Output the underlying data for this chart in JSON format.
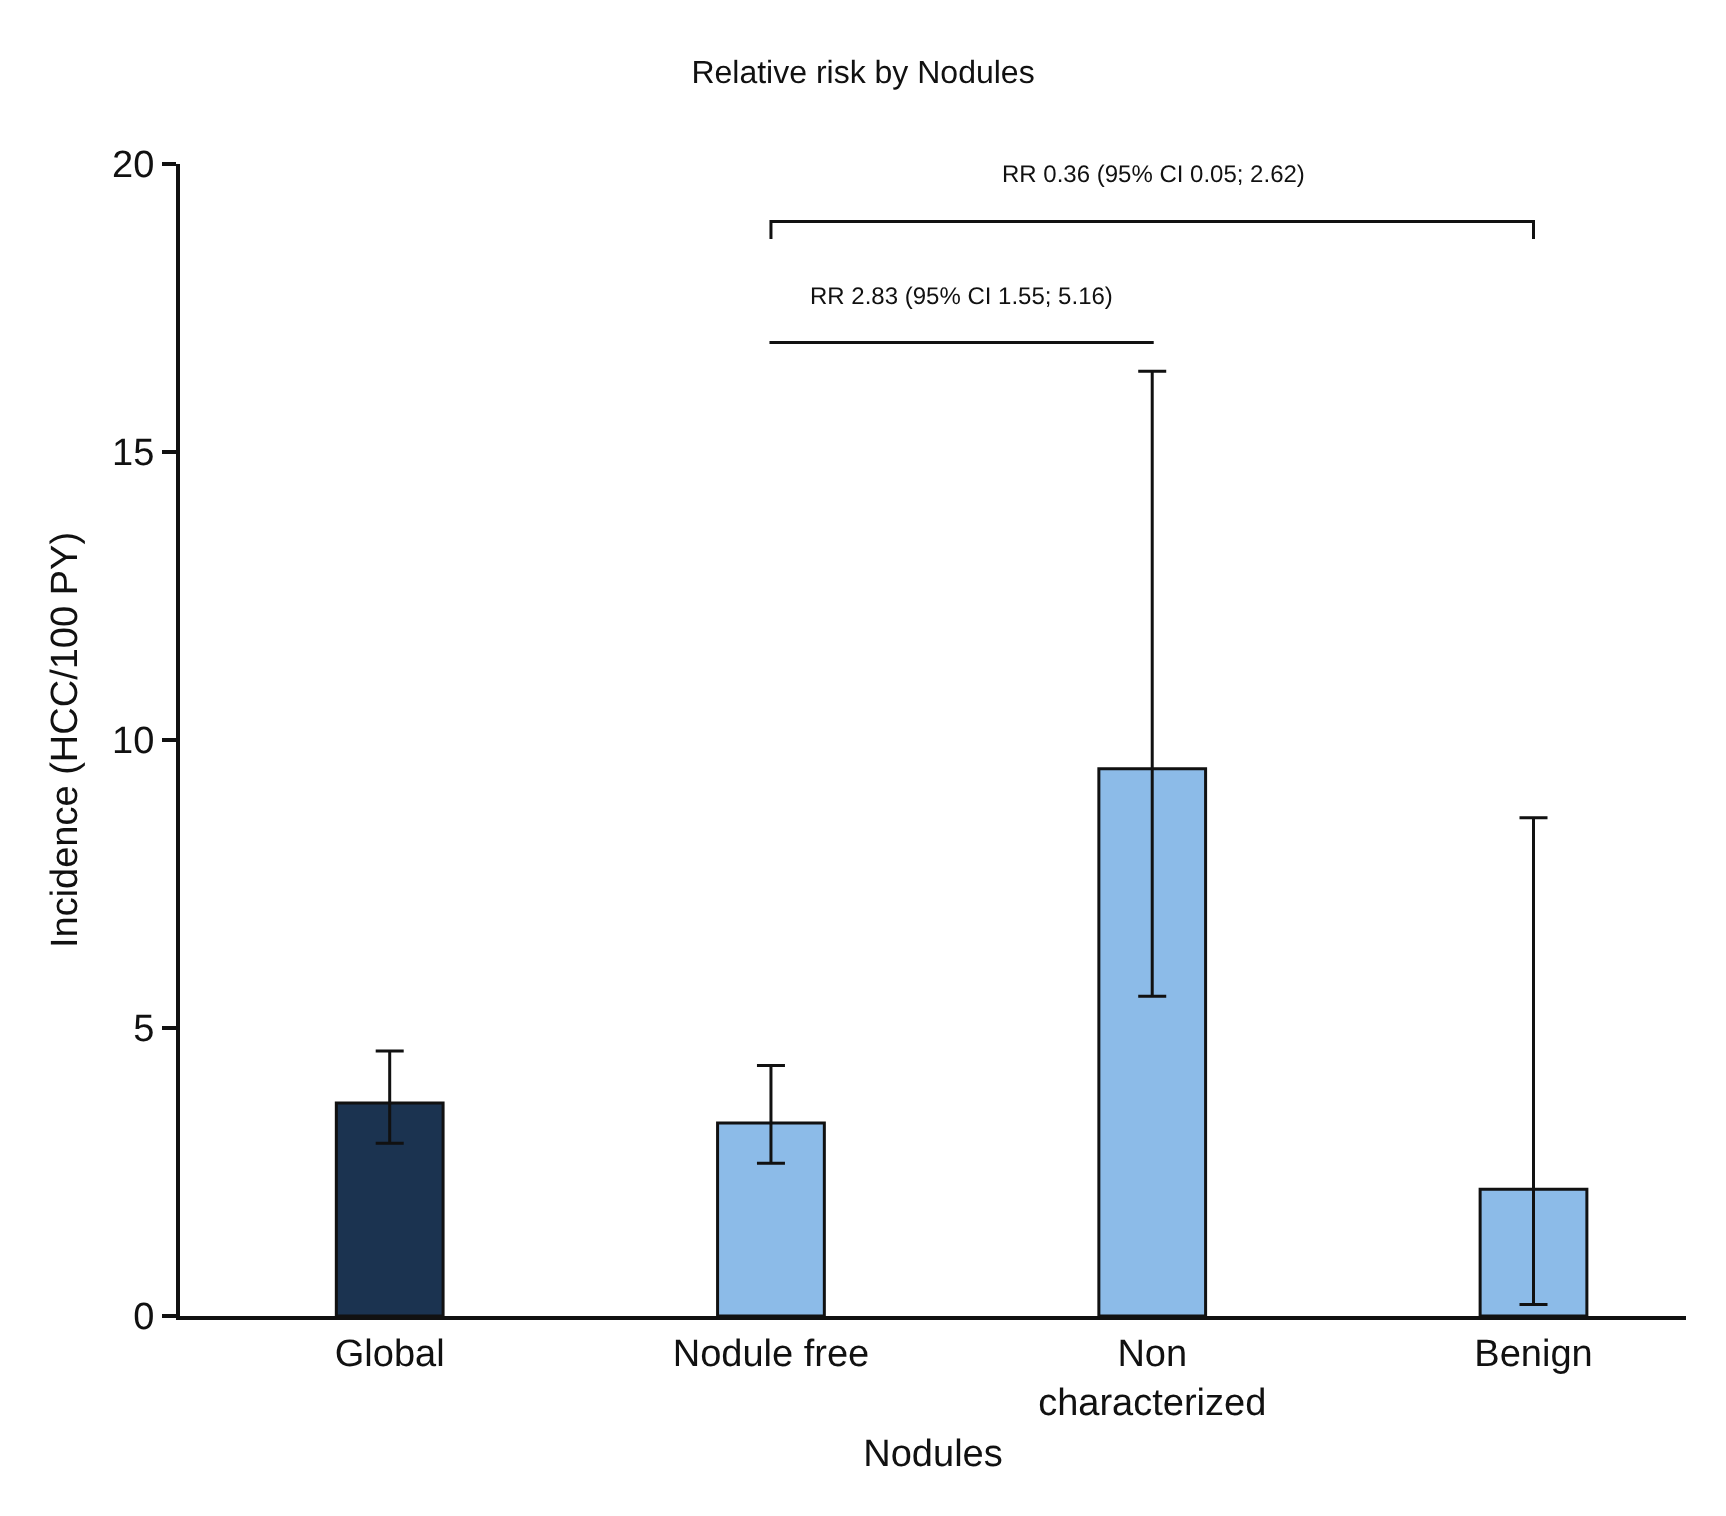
{
  "chart_data": {
    "type": "bar",
    "title": "Relative risk by Nodules",
    "xlabel": "Nodules",
    "ylabel": "Incidence (HCC/100 PY)",
    "categories": [
      "Global",
      "Nodule free",
      "Non\ncharacterized",
      "Benign"
    ],
    "values": [
      3.7,
      3.35,
      9.5,
      2.2
    ],
    "colors": [
      "#1b3350",
      "#8cbbe8",
      "#8cbbe8",
      "#8cbbe8"
    ],
    "errors": [
      [
        3.0,
        4.6
      ],
      [
        2.65,
        4.35
      ],
      [
        5.55,
        16.4
      ],
      [
        0.2,
        8.65
      ]
    ],
    "ylim": [
      0,
      20
    ],
    "yticks": [
      0,
      5,
      10,
      15,
      20
    ],
    "annotations": [
      "RR 0.36 (95% CI 0.05; 2.62)",
      "RR 2.83 (95% CI 1.55; 5.16)"
    ]
  }
}
